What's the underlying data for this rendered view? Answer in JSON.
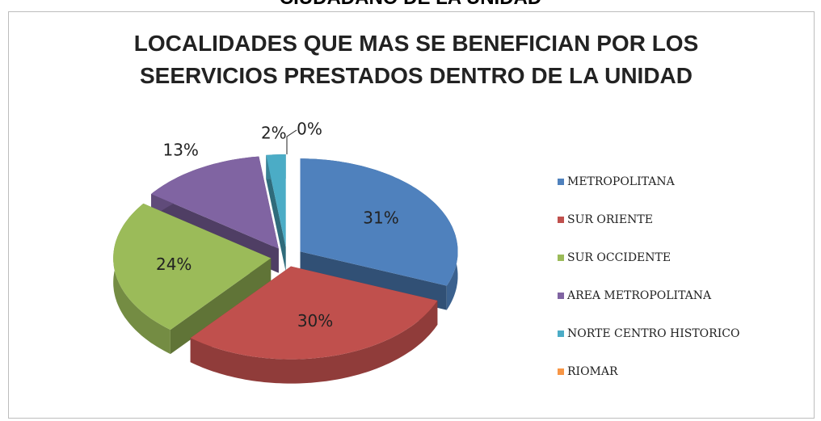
{
  "header": "CIUDADANO DE LA UNIDAD",
  "chart_data": {
    "type": "pie",
    "title": "LOCALIDADES QUE MAS SE BENEFICIAN POR LOS SEERVICIOS PRESTADOS DENTRO DE LA UNIDAD",
    "categories": [
      "METROPOLITANA",
      "SUR ORIENTE",
      "SUR OCCIDENTE",
      "AREA METROPOLITANA",
      "NORTE CENTRO HISTORICO",
      "RIOMAR"
    ],
    "values": [
      31,
      30,
      24,
      13,
      2,
      0
    ],
    "value_labels": [
      "31%",
      "30%",
      "24%",
      "13%",
      "2%",
      "0%"
    ],
    "colors": [
      "#4f81bd",
      "#c0504d",
      "#9bbb59",
      "#8064a2",
      "#4bacc6",
      "#f79646"
    ],
    "legend": "right"
  }
}
